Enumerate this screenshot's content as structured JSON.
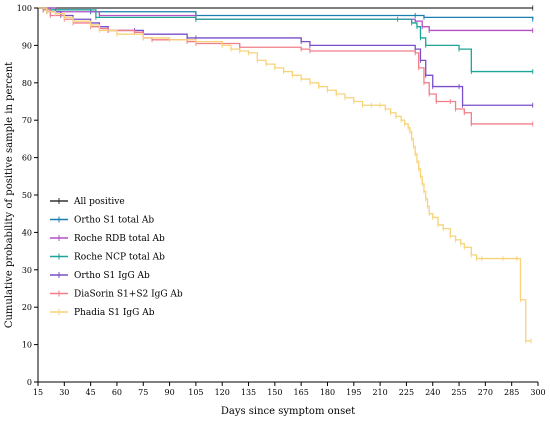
{
  "chart_data": {
    "type": "line",
    "title": "",
    "xlabel": "Days since symptom onset",
    "ylabel": "Cumulative probability of positive sample in percent",
    "xlim": [
      15,
      300
    ],
    "ylim": [
      0,
      100
    ],
    "xticks": [
      15,
      30,
      45,
      60,
      75,
      90,
      105,
      120,
      135,
      150,
      165,
      180,
      195,
      210,
      225,
      240,
      255,
      270,
      285,
      300
    ],
    "yticks": [
      0,
      10,
      20,
      30,
      40,
      50,
      60,
      70,
      80,
      90,
      100
    ],
    "legend_position": "left-middle",
    "series": [
      {
        "name": "All positive",
        "color": "#333333",
        "points": [
          [
            15,
            100
          ],
          [
            297,
            100
          ]
        ]
      },
      {
        "name": "Ortho S1 total Ab",
        "color": "#1a7fb0",
        "points": [
          [
            15,
            100
          ],
          [
            22,
            99.5
          ],
          [
            45,
            99
          ],
          [
            105,
            98
          ],
          [
            230,
            98
          ],
          [
            235,
            97.5
          ],
          [
            297,
            97
          ]
        ]
      },
      {
        "name": "Roche RDB total Ab",
        "color": "#b64fc8",
        "points": [
          [
            15,
            100
          ],
          [
            25,
            99
          ],
          [
            50,
            98
          ],
          [
            105,
            97
          ],
          [
            220,
            97
          ],
          [
            230,
            96.5
          ],
          [
            234,
            95
          ],
          [
            238,
            94
          ],
          [
            297,
            94
          ]
        ]
      },
      {
        "name": "Roche NCP total Ab",
        "color": "#1ca598",
        "points": [
          [
            15,
            100
          ],
          [
            18,
            99.5
          ],
          [
            48,
            97.5
          ],
          [
            105,
            97
          ],
          [
            228,
            96
          ],
          [
            231,
            95
          ],
          [
            233,
            92
          ],
          [
            236,
            90
          ],
          [
            255,
            89
          ],
          [
            262,
            83
          ],
          [
            297,
            83
          ]
        ]
      },
      {
        "name": "Ortho S1 IgG Ab",
        "color": "#7a4fc9",
        "points": [
          [
            15,
            100
          ],
          [
            20,
            99
          ],
          [
            28,
            98
          ],
          [
            35,
            97
          ],
          [
            45,
            96
          ],
          [
            50,
            95
          ],
          [
            55,
            94
          ],
          [
            70,
            94
          ],
          [
            75,
            93
          ],
          [
            100,
            92
          ],
          [
            105,
            92
          ],
          [
            165,
            91
          ],
          [
            170,
            90
          ],
          [
            230,
            89
          ],
          [
            233,
            86
          ],
          [
            236,
            82
          ],
          [
            240,
            79
          ],
          [
            255,
            79
          ],
          [
            257,
            74
          ],
          [
            297,
            74
          ]
        ]
      },
      {
        "name": "DiaSorin S1+S2 IgG Ab",
        "color": "#f07f8a",
        "points": [
          [
            15,
            100
          ],
          [
            18,
            99.5
          ],
          [
            22,
            98
          ],
          [
            30,
            97
          ],
          [
            35,
            96
          ],
          [
            45,
            95
          ],
          [
            50,
            94.5
          ],
          [
            55,
            94
          ],
          [
            70,
            93.5
          ],
          [
            75,
            92
          ],
          [
            80,
            91.5
          ],
          [
            100,
            91
          ],
          [
            105,
            90.5
          ],
          [
            130,
            89.5
          ],
          [
            165,
            89
          ],
          [
            170,
            88.5
          ],
          [
            230,
            88
          ],
          [
            232,
            84
          ],
          [
            235,
            80
          ],
          [
            238,
            77
          ],
          [
            242,
            75
          ],
          [
            250,
            75
          ],
          [
            253,
            73
          ],
          [
            258,
            72
          ],
          [
            262,
            69
          ],
          [
            297,
            69
          ]
        ]
      },
      {
        "name": "Phadia S1 IgG Ab",
        "color": "#f7d37a",
        "points": [
          [
            15,
            100
          ],
          [
            20,
            99
          ],
          [
            25,
            98.5
          ],
          [
            30,
            97.5
          ],
          [
            35,
            96.5
          ],
          [
            45,
            95.5
          ],
          [
            50,
            94
          ],
          [
            60,
            93
          ],
          [
            75,
            92
          ],
          [
            90,
            91.5
          ],
          [
            105,
            91
          ],
          [
            120,
            90
          ],
          [
            125,
            89
          ],
          [
            130,
            88.5
          ],
          [
            135,
            88
          ],
          [
            140,
            86
          ],
          [
            145,
            85
          ],
          [
            150,
            84
          ],
          [
            155,
            83
          ],
          [
            160,
            82
          ],
          [
            165,
            81
          ],
          [
            170,
            80
          ],
          [
            175,
            79
          ],
          [
            180,
            78
          ],
          [
            185,
            77
          ],
          [
            190,
            76
          ],
          [
            195,
            75
          ],
          [
            200,
            74
          ],
          [
            205,
            74
          ],
          [
            210,
            74
          ],
          [
            213,
            73
          ],
          [
            216,
            72
          ],
          [
            219,
            71
          ],
          [
            222,
            70
          ],
          [
            224,
            69
          ],
          [
            226,
            68
          ],
          [
            227,
            67
          ],
          [
            228,
            65
          ],
          [
            229,
            63
          ],
          [
            230,
            61
          ],
          [
            231,
            59
          ],
          [
            232,
            57
          ],
          [
            233,
            55
          ],
          [
            234,
            53
          ],
          [
            235,
            51
          ],
          [
            236,
            49
          ],
          [
            237,
            47
          ],
          [
            238,
            45
          ],
          [
            240,
            44
          ],
          [
            243,
            42
          ],
          [
            246,
            41
          ],
          [
            250,
            39
          ],
          [
            253,
            38
          ],
          [
            256,
            37
          ],
          [
            258,
            36
          ],
          [
            262,
            34
          ],
          [
            265,
            33
          ],
          [
            268,
            33
          ],
          [
            280,
            33
          ],
          [
            288,
            33
          ],
          [
            290,
            22
          ],
          [
            293,
            11
          ],
          [
            296,
            11
          ]
        ]
      }
    ]
  }
}
